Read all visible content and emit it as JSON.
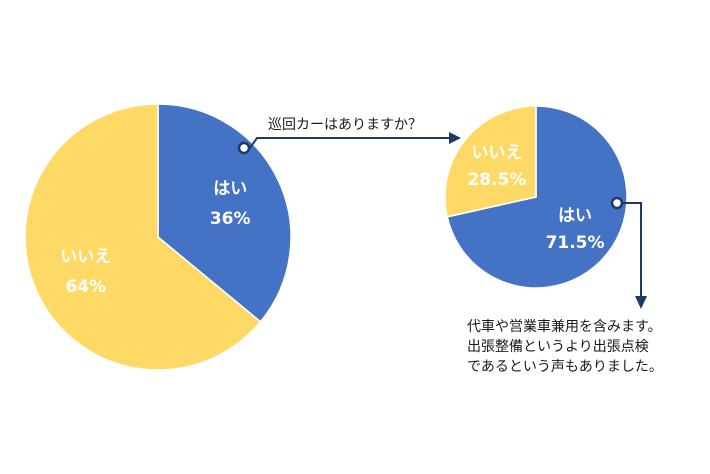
{
  "chart_data": [
    {
      "type": "pie",
      "question": "巡回カーはありますか？",
      "slices": [
        {
          "label": "はい",
          "value": 36,
          "display": "36%",
          "color": "#4472C4"
        },
        {
          "label": "いいえ",
          "value": 64,
          "display": "64%",
          "color": "#FFD966"
        }
      ]
    },
    {
      "type": "pie",
      "slices": [
        {
          "label": "はい",
          "value": 71.5,
          "display": "71.5%",
          "color": "#4472C4"
        },
        {
          "label": "いいえ",
          "value": 28.5,
          "display": "28.5%",
          "color": "#FFD966"
        }
      ],
      "note": [
        "代車や営業車兼用を含みます。",
        "出張整備というより出張点検",
        "であるという声もありました。"
      ]
    }
  ],
  "colors": {
    "callout_line": "#1F3864",
    "label_text": "#ffffff",
    "slice_border": "#ffffff"
  }
}
